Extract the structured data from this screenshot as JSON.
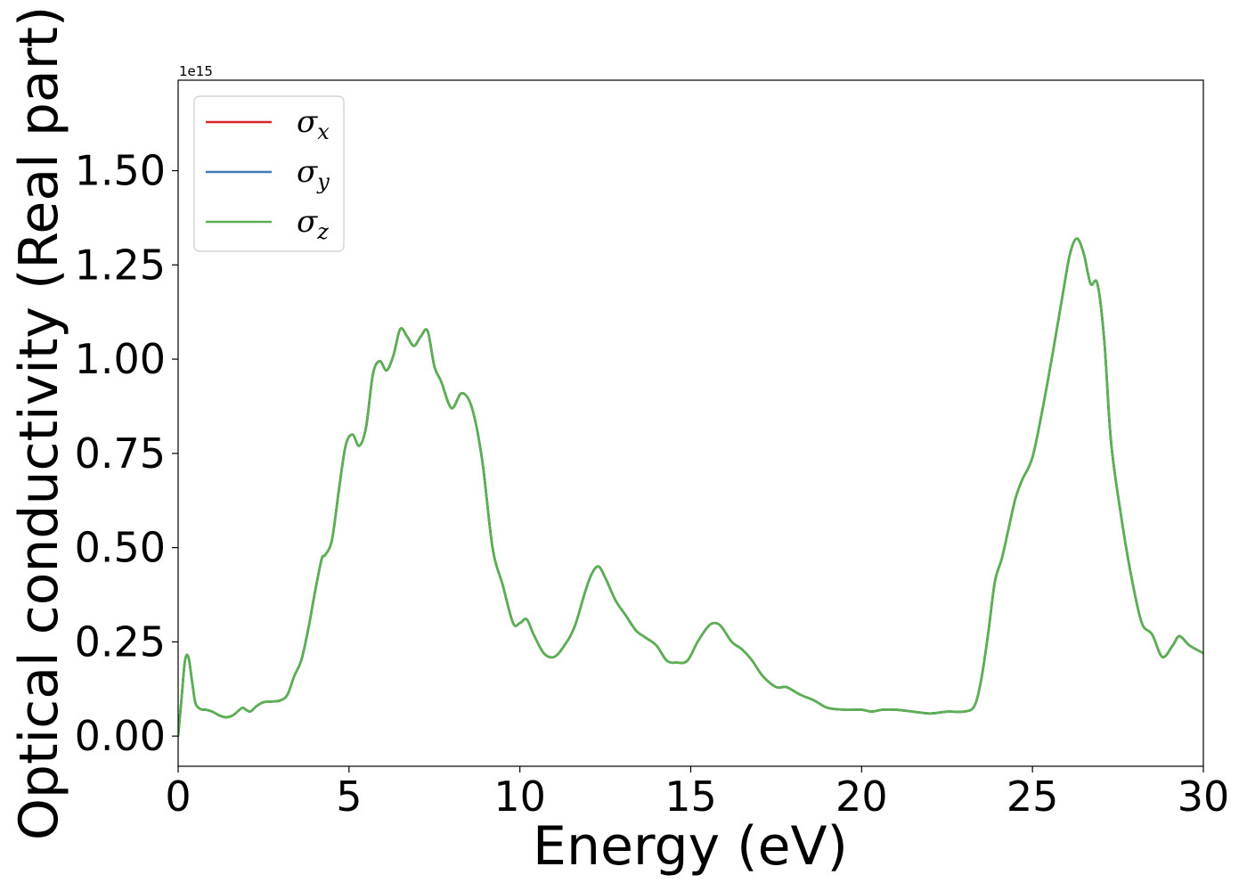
{
  "chart_data": {
    "type": "line",
    "xlabel": "Energy (eV)",
    "ylabel": "Optical conductivity (Real part)",
    "y_offset_label": "1e15",
    "xlim": [
      0,
      30
    ],
    "ylim": [
      -0.08,
      1.74
    ],
    "x_ticks": [
      0,
      5,
      10,
      15,
      20,
      25,
      30
    ],
    "x_tick_labels": [
      "0",
      "5",
      "10",
      "15",
      "20",
      "25",
      "30"
    ],
    "y_ticks": [
      0.0,
      0.25,
      0.5,
      0.75,
      1.0,
      1.25,
      1.5
    ],
    "y_tick_labels": [
      "0.00",
      "0.25",
      "0.50",
      "0.75",
      "1.00",
      "1.25",
      "1.50"
    ],
    "grid": false,
    "legend_position": "upper-left",
    "legend": [
      {
        "base": "σ",
        "sub": "x",
        "color": "#d62728"
      },
      {
        "base": "σ",
        "sub": "y",
        "color": "#3b7cb5"
      },
      {
        "base": "σ",
        "sub": "z",
        "color": "#5ab14f"
      }
    ],
    "x": [
      0,
      0.1,
      0.2,
      0.3,
      0.4,
      0.5,
      0.6,
      0.7,
      0.8,
      1.0,
      1.2,
      1.4,
      1.6,
      1.8,
      1.9,
      2.1,
      2.3,
      2.5,
      2.8,
      3.0,
      3.2,
      3.4,
      3.6,
      3.8,
      4.0,
      4.2,
      4.3,
      4.5,
      4.7,
      4.9,
      5.1,
      5.3,
      5.5,
      5.7,
      5.9,
      6.1,
      6.3,
      6.5,
      6.7,
      6.9,
      7.1,
      7.3,
      7.5,
      7.7,
      8.0,
      8.3,
      8.6,
      8.9,
      9.2,
      9.5,
      9.8,
      10.0,
      10.2,
      10.4,
      10.7,
      11.0,
      11.3,
      11.6,
      11.9,
      12.1,
      12.3,
      12.5,
      12.8,
      13.1,
      13.4,
      13.7,
      14.0,
      14.3,
      14.6,
      14.9,
      15.2,
      15.5,
      15.7,
      15.9,
      16.2,
      16.5,
      16.8,
      17.1,
      17.5,
      17.8,
      18.2,
      18.6,
      19.0,
      19.5,
      20.0,
      20.3,
      20.6,
      21.0,
      21.5,
      22.0,
      22.5,
      23.0,
      23.3,
      23.5,
      23.7,
      23.9,
      24.1,
      24.3,
      24.5,
      24.7,
      25.0,
      25.3,
      25.6,
      25.9,
      26.1,
      26.3,
      26.5,
      26.7,
      26.9,
      27.1,
      27.3,
      27.6,
      27.9,
      28.2,
      28.5,
      28.8,
      29.1,
      29.3,
      29.6,
      30.0
    ],
    "series": [
      {
        "name": "σx",
        "color": "#d62728",
        "values": [
          0.0,
          0.1,
          0.2,
          0.21,
          0.15,
          0.09,
          0.075,
          0.07,
          0.07,
          0.065,
          0.055,
          0.05,
          0.055,
          0.07,
          0.075,
          0.065,
          0.08,
          0.09,
          0.092,
          0.095,
          0.11,
          0.16,
          0.2,
          0.28,
          0.38,
          0.47,
          0.48,
          0.52,
          0.65,
          0.77,
          0.8,
          0.77,
          0.82,
          0.96,
          0.995,
          0.97,
          1.01,
          1.08,
          1.06,
          1.035,
          1.06,
          1.075,
          0.98,
          0.94,
          0.87,
          0.91,
          0.87,
          0.73,
          0.5,
          0.4,
          0.3,
          0.3,
          0.31,
          0.27,
          0.22,
          0.21,
          0.24,
          0.29,
          0.38,
          0.43,
          0.45,
          0.42,
          0.36,
          0.32,
          0.28,
          0.26,
          0.24,
          0.2,
          0.195,
          0.2,
          0.25,
          0.29,
          0.3,
          0.29,
          0.25,
          0.23,
          0.2,
          0.16,
          0.13,
          0.13,
          0.11,
          0.095,
          0.075,
          0.07,
          0.07,
          0.065,
          0.07,
          0.07,
          0.065,
          0.06,
          0.065,
          0.065,
          0.08,
          0.15,
          0.27,
          0.41,
          0.47,
          0.55,
          0.63,
          0.68,
          0.74,
          0.87,
          1.02,
          1.18,
          1.28,
          1.32,
          1.28,
          1.2,
          1.2,
          1.05,
          0.78,
          0.58,
          0.42,
          0.3,
          0.27,
          0.21,
          0.24,
          0.265,
          0.24,
          0.22
        ]
      },
      {
        "name": "σy",
        "color": "#3b7cb5",
        "values": [
          0.0,
          0.1,
          0.2,
          0.21,
          0.15,
          0.09,
          0.075,
          0.07,
          0.07,
          0.065,
          0.055,
          0.05,
          0.055,
          0.07,
          0.075,
          0.065,
          0.08,
          0.09,
          0.092,
          0.095,
          0.11,
          0.16,
          0.2,
          0.28,
          0.38,
          0.47,
          0.48,
          0.52,
          0.65,
          0.77,
          0.8,
          0.77,
          0.82,
          0.96,
          0.995,
          0.97,
          1.01,
          1.08,
          1.06,
          1.035,
          1.06,
          1.075,
          0.98,
          0.94,
          0.87,
          0.91,
          0.87,
          0.73,
          0.5,
          0.4,
          0.3,
          0.3,
          0.31,
          0.27,
          0.22,
          0.21,
          0.24,
          0.29,
          0.38,
          0.43,
          0.45,
          0.42,
          0.36,
          0.32,
          0.28,
          0.26,
          0.24,
          0.2,
          0.195,
          0.2,
          0.25,
          0.29,
          0.3,
          0.29,
          0.25,
          0.23,
          0.2,
          0.16,
          0.13,
          0.13,
          0.11,
          0.095,
          0.075,
          0.07,
          0.07,
          0.065,
          0.07,
          0.07,
          0.065,
          0.06,
          0.065,
          0.065,
          0.08,
          0.15,
          0.27,
          0.41,
          0.47,
          0.55,
          0.63,
          0.68,
          0.74,
          0.87,
          1.02,
          1.18,
          1.28,
          1.32,
          1.28,
          1.2,
          1.2,
          1.05,
          0.78,
          0.58,
          0.42,
          0.3,
          0.27,
          0.21,
          0.24,
          0.265,
          0.24,
          0.22
        ]
      },
      {
        "name": "σz",
        "color": "#5ab14f",
        "values": [
          0.0,
          0.1,
          0.2,
          0.21,
          0.15,
          0.09,
          0.075,
          0.07,
          0.07,
          0.065,
          0.055,
          0.05,
          0.055,
          0.07,
          0.075,
          0.065,
          0.08,
          0.09,
          0.092,
          0.095,
          0.11,
          0.16,
          0.2,
          0.28,
          0.38,
          0.47,
          0.48,
          0.52,
          0.65,
          0.77,
          0.8,
          0.77,
          0.82,
          0.96,
          0.995,
          0.97,
          1.01,
          1.08,
          1.06,
          1.035,
          1.06,
          1.075,
          0.98,
          0.94,
          0.87,
          0.91,
          0.87,
          0.73,
          0.5,
          0.4,
          0.3,
          0.3,
          0.31,
          0.27,
          0.22,
          0.21,
          0.24,
          0.29,
          0.38,
          0.43,
          0.45,
          0.42,
          0.36,
          0.32,
          0.28,
          0.26,
          0.24,
          0.2,
          0.195,
          0.2,
          0.25,
          0.29,
          0.3,
          0.29,
          0.25,
          0.23,
          0.2,
          0.16,
          0.13,
          0.13,
          0.11,
          0.095,
          0.075,
          0.07,
          0.07,
          0.065,
          0.07,
          0.07,
          0.065,
          0.06,
          0.065,
          0.065,
          0.08,
          0.15,
          0.27,
          0.41,
          0.47,
          0.55,
          0.63,
          0.68,
          0.74,
          0.87,
          1.02,
          1.18,
          1.28,
          1.32,
          1.28,
          1.2,
          1.2,
          1.05,
          0.78,
          0.58,
          0.42,
          0.3,
          0.27,
          0.21,
          0.24,
          0.265,
          0.24,
          0.22
        ]
      }
    ]
  }
}
